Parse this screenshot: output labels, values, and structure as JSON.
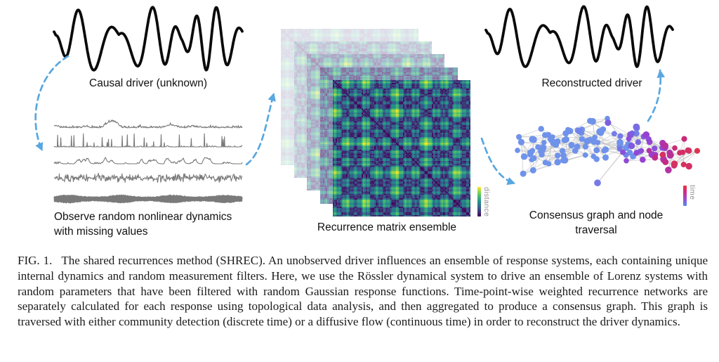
{
  "figure": {
    "panels": {
      "causal_driver": {
        "label": "Causal driver (unknown)"
      },
      "observations": {
        "label": "Observe random nonlinear dynamics\nwith missing values",
        "series_count": 5
      },
      "recurrence": {
        "label": "Recurrence matrix ensemble",
        "matrix_count": 5,
        "colorbar_label": "distance"
      },
      "reconstructed_driver": {
        "label": "Reconstructed driver"
      },
      "consensus_graph": {
        "label": "Consensus graph and node\ntraversal",
        "colorbar_label": "time"
      }
    },
    "colors": {
      "signal_black": "#0a0a0a",
      "observation_gray": "#7a7a7a",
      "arrow_blue": "#58a7e0",
      "graph_edge_gray": "#c2c2c2",
      "viridis_distance": [
        "#440154",
        "#3b528b",
        "#21918c",
        "#5ec962",
        "#fde725"
      ],
      "time_gradient_bottom_to_top": [
        "#4f8bf0",
        "#9b4fd6",
        "#cf2a8a",
        "#e8333f"
      ],
      "node_time_stops": [
        [
          0,
          "#6f92ea"
        ],
        [
          0.55,
          "#6f92ea"
        ],
        [
          0.68,
          "#7d5ee0"
        ],
        [
          0.8,
          "#9a3ecf"
        ],
        [
          0.9,
          "#c62a80"
        ],
        [
          1,
          "#dd3550"
        ]
      ]
    }
  },
  "caption": {
    "label": "FIG. 1.",
    "text": "The shared recurrences method (SHREC). An unobserved driver influences an ensemble of response systems, each containing unique internal dynamics and random measurement filters. Here, we use the Rössler dynamical system to drive an ensemble of Lorenz systems with random parameters that have been filtered with random Gaussian response functions. Time-point-wise weighted recurrence networks are separately calculated for each response using topological data analysis, and then aggregated to produce a consensus graph. This graph is traversed with either community detection (discrete time) or a diffusive flow (continuous time) in order to reconstruct the driver dynamics."
  }
}
